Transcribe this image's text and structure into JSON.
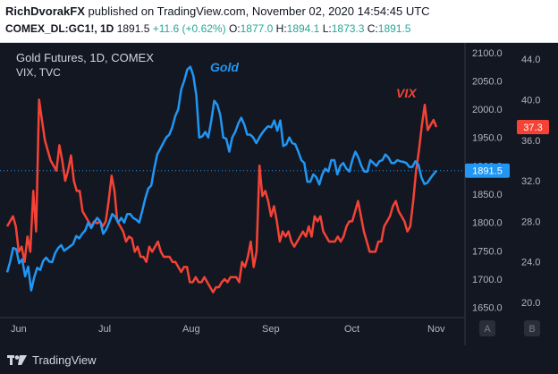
{
  "header": {
    "author": "RichDvorakFX",
    "published_text": "published on TradingView.com, November 02, 2020 14:54:45 UTC",
    "symbol": "COMEX_DL:GC1!, 1D",
    "last": "1891.5",
    "change": "+11.6 (+0.62%)",
    "open_label": "O:",
    "open": "1877.0",
    "high_label": "H:",
    "high": "1894.1",
    "low_label": "L:",
    "low": "1873.3",
    "close_label": "C:",
    "close": "1891.5"
  },
  "legend": {
    "line1": "Gold Futures, 1D, COMEX",
    "line2": "VIX, TVC"
  },
  "footer": {
    "brand": "TradingView"
  },
  "colors": {
    "gold": "#2196f3",
    "vix": "#f44336",
    "background": "#131722",
    "text": "#d1d4dc",
    "axis_text": "#b2b5be"
  },
  "chart_data": {
    "type": "line",
    "annotations": [
      "Gold",
      "VIX"
    ],
    "x_tick_labels": [
      "Jun",
      "Jul",
      "Aug",
      "Sep",
      "Oct",
      "Nov"
    ],
    "scale_buttons": [
      "A",
      "B"
    ],
    "left_axis": {
      "ticks": [
        2100.0,
        2050.0,
        2000.0,
        1950.0,
        1900.0,
        1850.0,
        1800.0,
        1750.0,
        1700.0,
        1650.0
      ],
      "range": [
        1632,
        2117
      ]
    },
    "right_axis": {
      "ticks": [
        44.0,
        40.0,
        36.0,
        32.0,
        28.0,
        24.0,
        20.0
      ],
      "range": [
        18.5,
        45.6
      ]
    },
    "last_value_labels": {
      "gold": "1891.5",
      "vix": "37.3"
    },
    "series": [
      {
        "name": "Gold",
        "axis": "left",
        "values": [
          1712,
          1731,
          1755,
          1753,
          1728,
          1735,
          1705,
          1722,
          1680,
          1703,
          1720,
          1716,
          1732,
          1738,
          1731,
          1730,
          1746,
          1755,
          1760,
          1750,
          1754,
          1758,
          1762,
          1776,
          1772,
          1780,
          1786,
          1800,
          1790,
          1800,
          1808,
          1802,
          1780,
          1788,
          1800,
          1815,
          1810,
          1800,
          1808,
          1800,
          1815,
          1815,
          1808,
          1805,
          1800,
          1820,
          1842,
          1860,
          1865,
          1895,
          1920,
          1930,
          1940,
          1950,
          1955,
          1968,
          1988,
          2000,
          2035,
          2050,
          2070,
          2075,
          2060,
          2025,
          1950,
          1952,
          1960,
          1950,
          1980,
          2015,
          2008,
          1990,
          1950,
          1948,
          1925,
          1950,
          1960,
          1975,
          1985,
          1973,
          1955,
          1955,
          1950,
          1940,
          1950,
          1958,
          1965,
          1970,
          1968,
          1980,
          1962,
          1980,
          1935,
          1938,
          1950,
          1940,
          1938,
          1925,
          1910,
          1905,
          1872,
          1872,
          1885,
          1880,
          1867,
          1885,
          1895,
          1890,
          1910,
          1910,
          1885,
          1900,
          1905,
          1895,
          1890,
          1910,
          1925,
          1915,
          1900,
          1890,
          1890,
          1910,
          1905,
          1900,
          1908,
          1910,
          1920,
          1915,
          1905,
          1905,
          1910,
          1908,
          1907,
          1905,
          1898,
          1898,
          1908,
          1902,
          1880,
          1868,
          1870,
          1878,
          1885,
          1891.5
        ]
      },
      {
        "name": "VIX",
        "axis": "right",
        "values": [
          27.5,
          28.0,
          28.5,
          27.5,
          25.0,
          25.5,
          24.0,
          26.5,
          25.0,
          31.0,
          27.0,
          40.0,
          38.0,
          36.0,
          35.0,
          34.0,
          33.5,
          33.0,
          35.5,
          34.0,
          32.0,
          33.0,
          34.5,
          32.0,
          31.0,
          31.0,
          29.0,
          28.5,
          28.0,
          27.5,
          28.0,
          27.8,
          28.0,
          27.5,
          28.0,
          30.0,
          32.5,
          31.0,
          28.0,
          27.5,
          27.0,
          26.0,
          26.5,
          26.3,
          25.0,
          25.5,
          24.5,
          24.5,
          24.0,
          25.5,
          25.0,
          25.5,
          26.0,
          25.0,
          24.5,
          24.5,
          24.5,
          24.0,
          24.0,
          23.5,
          23.0,
          23.5,
          23.5,
          22.0,
          22.0,
          22.5,
          22.0,
          22.0,
          22.5,
          22.0,
          21.5,
          21.0,
          21.5,
          21.5,
          22.0,
          22.3,
          22.0,
          22.5,
          22.5,
          22.5,
          22.0,
          24.0,
          23.5,
          24.5,
          26.0,
          23.5,
          25.0,
          33.5,
          30.5,
          31.0,
          30.0,
          28.5,
          29.5,
          28.0,
          26.0,
          27.0,
          26.5,
          27.0,
          26.0,
          25.5,
          26.0,
          26.5,
          27.0,
          26.5,
          27.5,
          26.5,
          28.5,
          28.0,
          28.5,
          27.0,
          26.5,
          26.0,
          26.0,
          26.0,
          26.5,
          26.0,
          26.5,
          27.5,
          28.0,
          28.0,
          29.0,
          30.0,
          28.5,
          27.0,
          26.0,
          25.0,
          25.0,
          25.0,
          26.0,
          26.0,
          27.5,
          28.0,
          28.5,
          29.5,
          30.0,
          29.0,
          28.5,
          28.0,
          27.0,
          27.5,
          30.0,
          33.0,
          35.0,
          37.5,
          39.5,
          37.0,
          37.5,
          38.0,
          37.3
        ]
      }
    ]
  }
}
